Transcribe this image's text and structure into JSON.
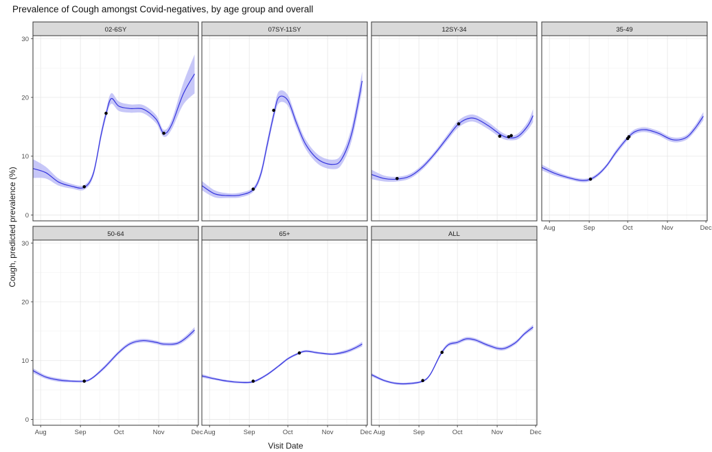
{
  "title": "Prevalence of Cough amongst Covid-negatives, by age group and overall",
  "colors": {
    "line": "#3333dd",
    "band": "#b4b4f6",
    "point": "#000000",
    "strip": "#d9d9d9",
    "border": "#333333"
  },
  "chart_data": {
    "type": "line",
    "title": "Prevalence of Cough amongst Covid-negatives, by age group and overall",
    "xlabel": "Visit Date",
    "ylabel": "Cough, predicted prevalence (%)",
    "xlim": [
      "2020-07-26",
      "2020-12-02"
    ],
    "x_ticks": [
      "2020-08-01",
      "2020-09-01",
      "2020-10-01",
      "2020-11-01",
      "2020-12-01"
    ],
    "x_tick_labels": [
      "Aug",
      "Sep",
      "Oct",
      "Nov",
      "Dec"
    ],
    "ylim": [
      -1,
      30.5
    ],
    "y_ticks": [
      0,
      10,
      20,
      30
    ],
    "grid": true,
    "panels": [
      {
        "name": "02-6SY",
        "x": [
          "2020-07-26",
          "2020-08-05",
          "2020-08-15",
          "2020-08-25",
          "2020-09-04",
          "2020-09-11",
          "2020-09-17",
          "2020-09-21",
          "2020-09-25",
          "2020-10-01",
          "2020-10-10",
          "2020-10-20",
          "2020-10-30",
          "2020-11-05",
          "2020-11-11",
          "2020-11-20",
          "2020-11-29"
        ],
        "y": [
          7.9,
          7.2,
          5.6,
          4.9,
          4.7,
          7.0,
          13.5,
          17.2,
          19.8,
          18.5,
          18.1,
          18.0,
          16.3,
          13.9,
          15.3,
          20.5,
          24.0
        ],
        "band": [
          1.6,
          1.0,
          0.6,
          0.4,
          0.4,
          0.5,
          0.7,
          0.7,
          0.9,
          0.8,
          0.7,
          0.7,
          0.7,
          0.6,
          0.8,
          1.8,
          3.3
        ],
        "points": [
          [
            "2020-09-04",
            4.8
          ],
          [
            "2020-09-21",
            17.3
          ],
          [
            "2020-11-05",
            13.9
          ]
        ]
      },
      {
        "name": "07SY-11SY",
        "x": [
          "2020-07-26",
          "2020-08-05",
          "2020-08-15",
          "2020-08-25",
          "2020-09-04",
          "2020-09-10",
          "2020-09-15",
          "2020-09-20",
          "2020-09-24",
          "2020-10-01",
          "2020-10-08",
          "2020-10-15",
          "2020-10-25",
          "2020-11-05",
          "2020-11-12",
          "2020-11-20",
          "2020-11-28"
        ],
        "y": [
          5.0,
          3.6,
          3.3,
          3.4,
          4.3,
          7.0,
          12.0,
          17.0,
          20.0,
          19.5,
          15.5,
          12.0,
          9.4,
          8.6,
          9.5,
          14.0,
          22.8
        ],
        "band": [
          0.8,
          0.6,
          0.4,
          0.4,
          0.4,
          0.6,
          0.8,
          0.8,
          1.0,
          0.9,
          0.8,
          0.8,
          0.8,
          0.8,
          0.9,
          1.2,
          1.6
        ],
        "points": [
          [
            "2020-09-04",
            4.4
          ],
          [
            "2020-09-20",
            17.8
          ]
        ]
      },
      {
        "name": "12SY-34",
        "x": [
          "2020-07-26",
          "2020-08-05",
          "2020-08-15",
          "2020-08-25",
          "2020-09-04",
          "2020-09-14",
          "2020-09-24",
          "2020-10-01",
          "2020-10-08",
          "2020-10-15",
          "2020-10-25",
          "2020-11-05",
          "2020-11-12",
          "2020-11-18",
          "2020-11-25",
          "2020-11-29"
        ],
        "y": [
          6.9,
          6.2,
          6.1,
          6.6,
          8.2,
          10.6,
          13.4,
          15.3,
          16.3,
          16.4,
          15.2,
          13.5,
          13.1,
          13.5,
          15.2,
          16.9
        ],
        "band": [
          0.8,
          0.5,
          0.4,
          0.4,
          0.4,
          0.4,
          0.5,
          0.6,
          0.6,
          0.6,
          0.6,
          0.5,
          0.4,
          0.5,
          0.7,
          1.1
        ],
        "points": [
          [
            "2020-08-15",
            6.2
          ],
          [
            "2020-10-02",
            15.5
          ],
          [
            "2020-11-03",
            13.4
          ],
          [
            "2020-11-10",
            13.3
          ],
          [
            "2020-11-12",
            13.5
          ]
        ]
      },
      {
        "name": "35-49",
        "x": [
          "2020-07-26",
          "2020-08-05",
          "2020-08-15",
          "2020-08-25",
          "2020-09-01",
          "2020-09-08",
          "2020-09-15",
          "2020-09-22",
          "2020-10-01",
          "2020-10-07",
          "2020-10-15",
          "2020-10-25",
          "2020-11-05",
          "2020-11-15",
          "2020-11-22",
          "2020-11-29"
        ],
        "y": [
          8.1,
          7.1,
          6.4,
          5.9,
          6.0,
          6.9,
          8.5,
          10.7,
          13.1,
          14.2,
          14.5,
          13.9,
          12.8,
          13.1,
          14.6,
          16.8
        ],
        "band": [
          0.5,
          0.4,
          0.3,
          0.3,
          0.3,
          0.3,
          0.3,
          0.4,
          0.4,
          0.4,
          0.4,
          0.4,
          0.4,
          0.4,
          0.5,
          0.7
        ],
        "points": [
          [
            "2020-09-02",
            6.1
          ],
          [
            "2020-10-01",
            13.0
          ],
          [
            "2020-10-02",
            13.3
          ]
        ]
      },
      {
        "name": "50-64",
        "x": [
          "2020-07-26",
          "2020-08-05",
          "2020-08-15",
          "2020-08-25",
          "2020-09-04",
          "2020-09-10",
          "2020-09-20",
          "2020-10-01",
          "2020-10-10",
          "2020-10-20",
          "2020-10-30",
          "2020-11-05",
          "2020-11-15",
          "2020-11-22",
          "2020-11-29"
        ],
        "y": [
          8.3,
          7.2,
          6.7,
          6.5,
          6.5,
          7.0,
          8.9,
          11.4,
          12.9,
          13.4,
          13.1,
          12.8,
          12.9,
          13.8,
          15.2
        ],
        "band": [
          0.4,
          0.3,
          0.3,
          0.2,
          0.2,
          0.2,
          0.3,
          0.3,
          0.3,
          0.3,
          0.3,
          0.3,
          0.3,
          0.4,
          0.5
        ],
        "points": [
          [
            "2020-09-04",
            6.5
          ]
        ]
      },
      {
        "name": "65+",
        "x": [
          "2020-07-26",
          "2020-08-05",
          "2020-08-15",
          "2020-08-25",
          "2020-09-04",
          "2020-09-14",
          "2020-09-24",
          "2020-10-01",
          "2020-10-08",
          "2020-10-15",
          "2020-10-25",
          "2020-11-05",
          "2020-11-15",
          "2020-11-22",
          "2020-11-28"
        ],
        "y": [
          7.4,
          6.9,
          6.5,
          6.3,
          6.4,
          7.5,
          9.1,
          10.3,
          11.1,
          11.6,
          11.3,
          11.1,
          11.5,
          12.1,
          12.8
        ],
        "band": [
          0.3,
          0.2,
          0.2,
          0.2,
          0.2,
          0.2,
          0.2,
          0.2,
          0.2,
          0.2,
          0.2,
          0.2,
          0.3,
          0.3,
          0.4
        ],
        "points": [
          [
            "2020-09-04",
            6.5
          ],
          [
            "2020-10-10",
            11.3
          ]
        ]
      },
      {
        "name": "ALL",
        "x": [
          "2020-07-26",
          "2020-08-05",
          "2020-08-15",
          "2020-08-25",
          "2020-09-04",
          "2020-09-10",
          "2020-09-18",
          "2020-09-24",
          "2020-10-01",
          "2020-10-08",
          "2020-10-15",
          "2020-10-25",
          "2020-11-05",
          "2020-11-15",
          "2020-11-22",
          "2020-11-29"
        ],
        "y": [
          7.6,
          6.6,
          6.1,
          6.1,
          6.5,
          7.7,
          11.1,
          12.7,
          13.1,
          13.7,
          13.5,
          12.6,
          12.0,
          13.0,
          14.5,
          15.7
        ],
        "band": [
          0.3,
          0.2,
          0.2,
          0.2,
          0.2,
          0.2,
          0.3,
          0.3,
          0.3,
          0.3,
          0.3,
          0.3,
          0.3,
          0.3,
          0.3,
          0.4
        ],
        "points": [
          [
            "2020-09-04",
            6.6
          ],
          [
            "2020-09-19",
            11.4
          ]
        ]
      }
    ]
  }
}
